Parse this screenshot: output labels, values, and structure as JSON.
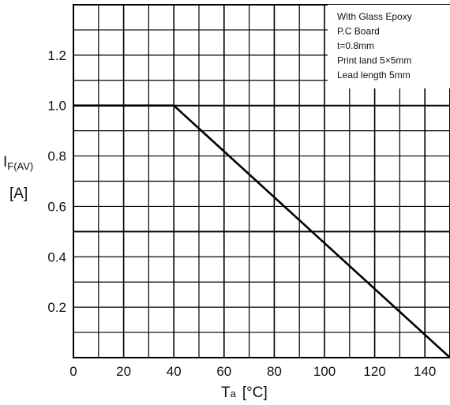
{
  "chart_data": {
    "type": "line",
    "xlabel": {
      "main": "T",
      "sub": "a",
      "unit": "[°C]"
    },
    "ylabel": {
      "main": "I",
      "sub": "F(AV)",
      "unit": "[A]"
    },
    "xlim": [
      0,
      150
    ],
    "ylim": [
      0,
      1.4
    ],
    "x_ticks": [
      "0",
      "20",
      "40",
      "60",
      "80",
      "100",
      "120",
      "140"
    ],
    "y_ticks": [
      "0.2",
      "0.4",
      "0.6",
      "0.8",
      "1.0",
      "1.2"
    ],
    "grid": true,
    "series": [
      {
        "x": [
          0,
          40,
          150
        ],
        "y": [
          1.0,
          1.0,
          0.0
        ]
      }
    ],
    "annotation": {
      "lines": [
        "With Glass Epoxy",
        "P.C Board",
        "t=0.8mm",
        "Print land 5×5mm",
        "Lead length 5mm"
      ],
      "placement": "top-right"
    }
  }
}
